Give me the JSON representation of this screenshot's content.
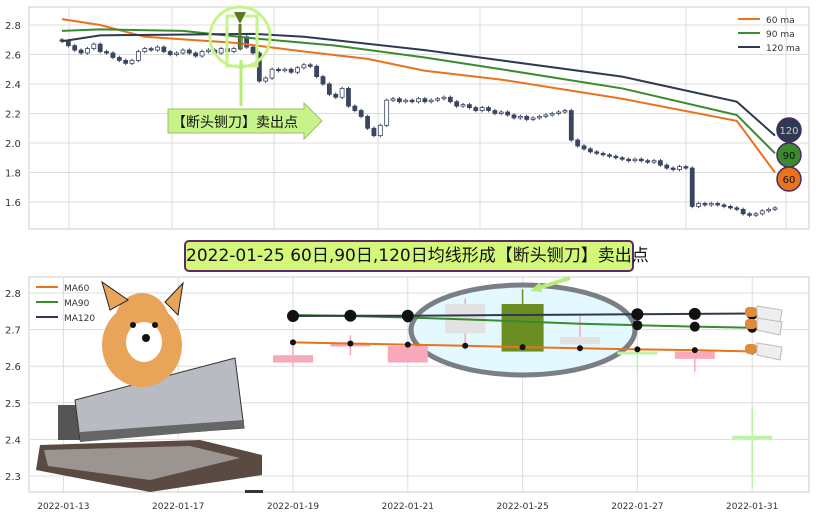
{
  "banner": "2022-01-25 60日,90日,120日均线形成【断头铡刀】卖出点",
  "callout": "【断头铡刀】卖出点",
  "colors": {
    "ma60": "#e8731a",
    "ma90": "#3a8a2e",
    "ma120": "#2e3a4f",
    "candle_down": "#3a4560",
    "pink": "#f7a8ba",
    "gray": "#e2e2e2",
    "green": "#6b8e23",
    "light_green": "#bdf3a6",
    "banner_bg": "#d4f77a"
  },
  "chart_data": [
    {
      "type": "candlestick",
      "ylim": [
        1.45,
        2.92
      ],
      "yticks": [
        "2.8",
        "2.6",
        "2.4",
        "2.2",
        "2.0",
        "1.8",
        "1.6"
      ],
      "legend": [
        "60 ma",
        "90 ma",
        "120 ma"
      ],
      "legend_position": "top-right",
      "grid": true,
      "end_badges": [
        "120",
        "90",
        "60"
      ],
      "close": [
        2.69,
        2.66,
        2.63,
        2.61,
        2.64,
        2.67,
        2.62,
        2.61,
        2.58,
        2.56,
        2.54,
        2.56,
        2.62,
        2.64,
        2.63,
        2.65,
        2.62,
        2.6,
        2.61,
        2.63,
        2.61,
        2.59,
        2.62,
        2.63,
        2.61,
        2.64,
        2.62,
        2.64,
        2.72,
        2.65,
        2.61,
        2.42,
        2.44,
        2.5,
        2.49,
        2.5,
        2.48,
        2.51,
        2.53,
        2.52,
        2.45,
        2.4,
        2.33,
        2.31,
        2.37,
        2.25,
        2.22,
        2.18,
        2.1,
        2.05,
        2.12,
        2.29,
        2.3,
        2.28,
        2.29,
        2.28,
        2.3,
        2.28,
        2.29,
        2.3,
        2.31,
        2.28,
        2.25,
        2.26,
        2.24,
        2.22,
        2.24,
        2.22,
        2.2,
        2.21,
        2.19,
        2.17,
        2.18,
        2.16,
        2.17,
        2.18,
        2.19,
        2.2,
        2.21,
        2.22,
        2.02,
        1.98,
        1.96,
        1.94,
        1.93,
        1.92,
        1.91,
        1.9,
        1.89,
        1.88,
        1.89,
        1.88,
        1.87,
        1.88,
        1.85,
        1.83,
        1.82,
        1.84,
        1.83,
        1.57,
        1.59,
        1.58,
        1.59,
        1.58,
        1.57,
        1.56,
        1.55,
        1.52,
        1.51,
        1.52,
        1.54,
        1.55,
        1.56
      ],
      "ma": [
        {
          "name": "60 ma",
          "points": [
            [
              0,
              2.84
            ],
            [
              6,
              2.8
            ],
            [
              13,
              2.72
            ],
            [
              27,
              2.68
            ],
            [
              38,
              2.62
            ],
            [
              48,
              2.57
            ],
            [
              57,
              2.49
            ],
            [
              69,
              2.43
            ],
            [
              88,
              2.3
            ],
            [
              106,
              2.15
            ],
            [
              112,
              1.8
            ]
          ]
        },
        {
          "name": "90 ma",
          "points": [
            [
              0,
              2.76
            ],
            [
              6,
              2.77
            ],
            [
              19,
              2.76
            ],
            [
              30,
              2.71
            ],
            [
              43,
              2.66
            ],
            [
              57,
              2.58
            ],
            [
              69,
              2.5
            ],
            [
              88,
              2.37
            ],
            [
              106,
              2.19
            ],
            [
              112,
              1.93
            ]
          ]
        },
        {
          "name": "120 ma",
          "points": [
            [
              0,
              2.69
            ],
            [
              6,
              2.73
            ],
            [
              30,
              2.74
            ],
            [
              38,
              2.72
            ],
            [
              57,
              2.63
            ],
            [
              69,
              2.56
            ],
            [
              88,
              2.45
            ],
            [
              106,
              2.28
            ],
            [
              112,
              2.05
            ]
          ]
        }
      ]
    },
    {
      "type": "candlestick",
      "ylim": [
        2.25,
        2.84
      ],
      "yticks": [
        "2.8",
        "2.7",
        "2.6",
        "2.5",
        "2.4",
        "2.3"
      ],
      "xticks": [
        "2022-01-13",
        "2022-01-17",
        "2022-01-19",
        "2022-01-21",
        "2022-01-25",
        "2022-01-27",
        "2022-01-31"
      ],
      "legend": [
        "MA60",
        "MA90",
        "MA120"
      ],
      "legend_position": "top-left",
      "grid": true,
      "candles": [
        {
          "date": "2022-01-19",
          "open": 2.63,
          "close": 2.61,
          "high": 2.66,
          "low": 2.6,
          "color": "pink"
        },
        {
          "date": "2022-01-20",
          "open": 2.662,
          "close": 2.658,
          "high": 2.685,
          "low": 2.63,
          "color": "pink"
        },
        {
          "date": "2022-01-21",
          "open": 2.655,
          "close": 2.61,
          "high": 2.66,
          "low": 2.61,
          "color": "pink"
        },
        {
          "date": "2022-01-24",
          "open": 2.77,
          "close": 2.69,
          "high": 2.785,
          "low": 2.655,
          "color": "gray"
        },
        {
          "date": "2022-01-25",
          "open": 2.64,
          "close": 2.77,
          "high": 2.81,
          "low": 2.64,
          "color": "green"
        },
        {
          "date": "2022-01-26",
          "open": 2.68,
          "close": 2.66,
          "high": 2.74,
          "low": 2.65,
          "color": "gray"
        },
        {
          "date": "2022-01-27",
          "open": 2.64,
          "close": 2.635,
          "high": 2.645,
          "low": 2.58,
          "color": "light_green"
        },
        {
          "date": "2022-01-28",
          "open": 2.64,
          "close": 2.62,
          "high": 2.645,
          "low": 2.585,
          "color": "pink"
        },
        {
          "date": "2022-01-31",
          "open": 2.41,
          "close": 2.4,
          "high": 2.49,
          "low": 2.27,
          "color": "light_green"
        }
      ],
      "ma60": [
        2.665,
        2.662,
        2.659,
        2.656,
        2.652,
        2.649,
        2.646,
        2.644,
        2.64
      ],
      "ma90": [
        2.74,
        2.737,
        2.733,
        2.728,
        2.722,
        2.716,
        2.712,
        2.708,
        2.705
      ],
      "ma120": [
        2.737,
        2.738,
        2.738,
        2.739,
        2.74,
        2.741,
        2.742,
        2.743,
        2.744
      ]
    }
  ]
}
